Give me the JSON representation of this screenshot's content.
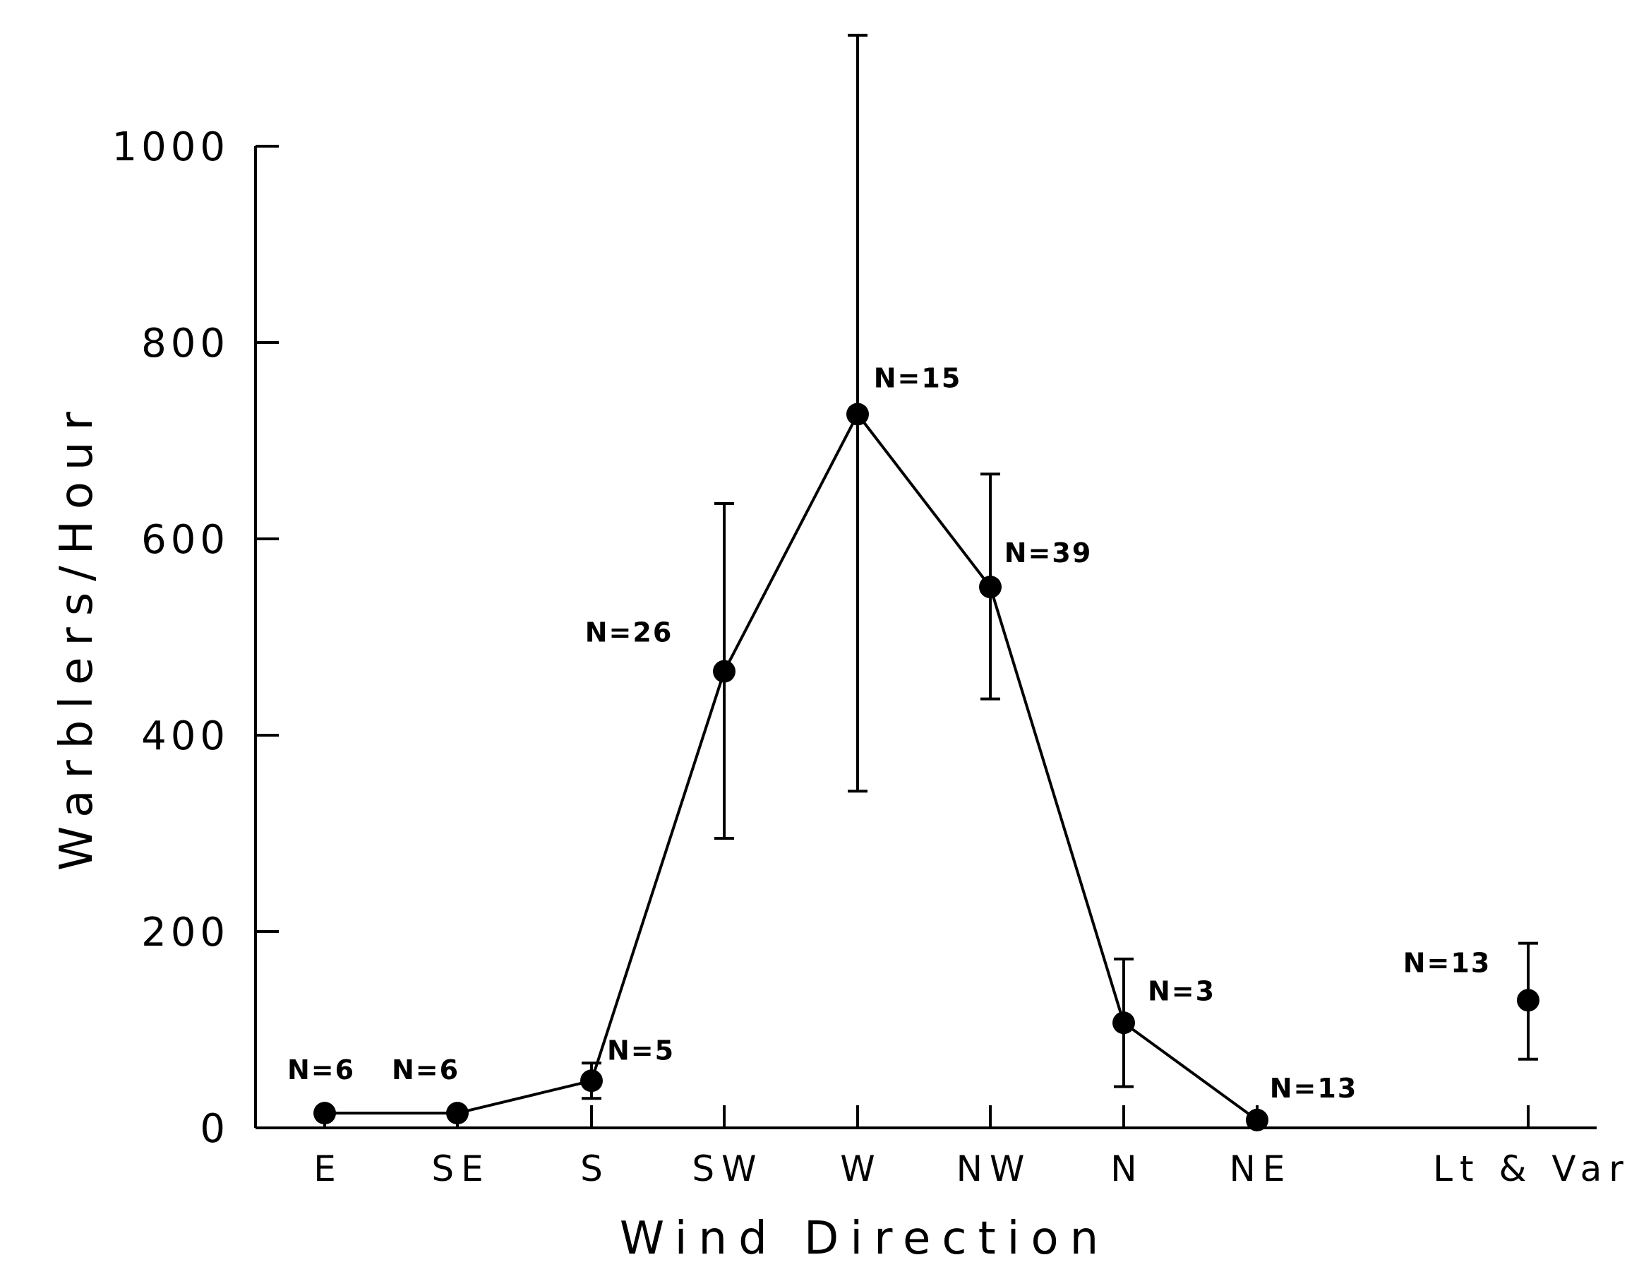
{
  "chart_data": {
    "type": "line",
    "xlabel": "Wind Direction",
    "ylabel": "Warblers/Hour",
    "ylim": [
      0,
      1000
    ],
    "yticks": [
      0,
      200,
      400,
      600,
      800,
      1000
    ],
    "categories": [
      "E",
      "SE",
      "S",
      "SW",
      "W",
      "NW",
      "N",
      "NE",
      "Lt & Var"
    ],
    "series": [
      {
        "values": [
          15,
          15,
          48,
          465,
          727,
          551,
          107,
          8,
          130
        ],
        "err_low": [
          15,
          15,
          30,
          295,
          343,
          437,
          42,
          8,
          70
        ],
        "err_high": [
          15,
          15,
          66,
          636,
          1113,
          666,
          172,
          8,
          188
        ],
        "n_labels": [
          "N=6",
          "N=6",
          "N=5",
          "N=26",
          "N=15",
          "N=39",
          "N=3",
          "N=13",
          "N=13"
        ],
        "connected_through": 7
      }
    ],
    "grid": false,
    "legend": "none",
    "color": "#000000"
  }
}
